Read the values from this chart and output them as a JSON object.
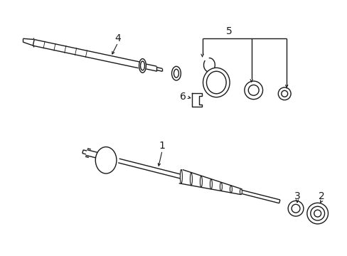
{
  "bg_color": "#ffffff",
  "line_color": "#1a1a1a",
  "lw": 1.0,
  "fig_width": 4.89,
  "fig_height": 3.6,
  "dpi": 100
}
